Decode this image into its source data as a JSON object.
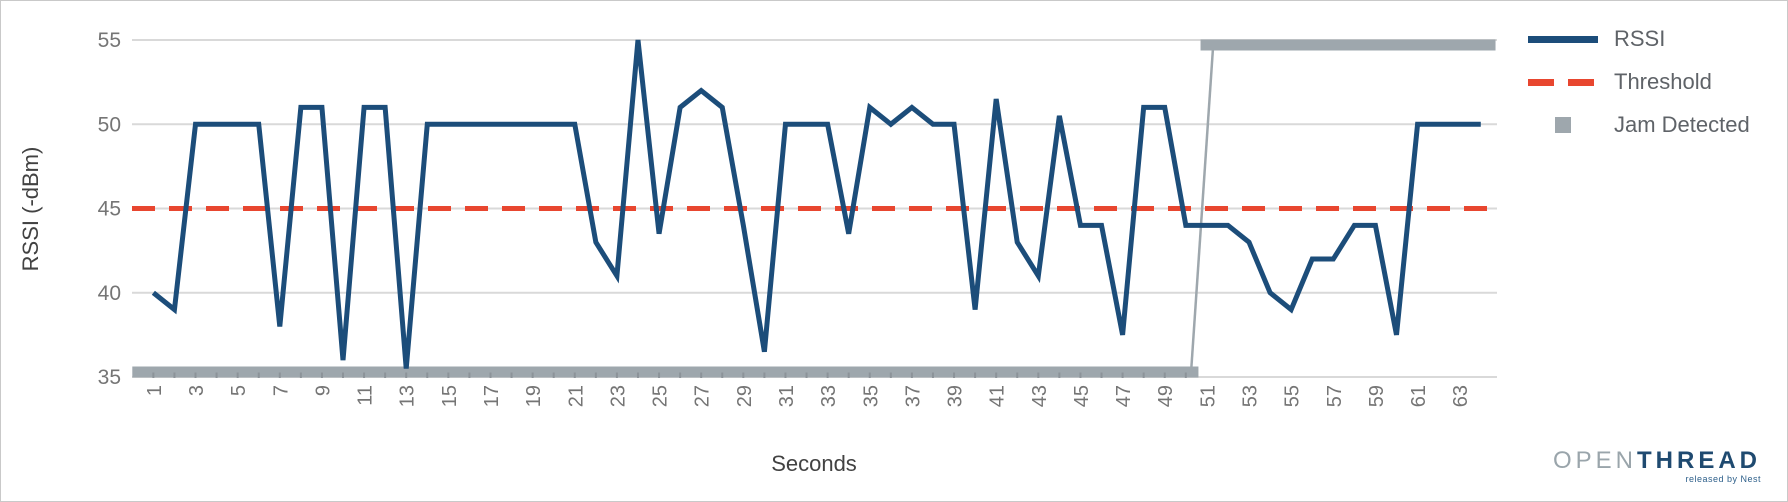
{
  "chart_data": {
    "type": "line",
    "title": "",
    "xlabel": "Seconds",
    "ylabel": "RSSI (-dBm)",
    "ylim": [
      35,
      55
    ],
    "xlim_seconds": [
      0,
      65
    ],
    "grid": true,
    "legend_position": "right",
    "y_ticks": [
      55,
      50,
      45,
      40,
      35
    ],
    "x_ticks": [
      1,
      3,
      5,
      7,
      9,
      11,
      13,
      15,
      17,
      19,
      21,
      23,
      25,
      27,
      29,
      31,
      33,
      35,
      37,
      39,
      41,
      43,
      45,
      47,
      49,
      51,
      53,
      55,
      57,
      59,
      61,
      63
    ],
    "series": [
      {
        "name": "RSSI",
        "type": "line",
        "color": "#1C4D7A",
        "start_second": 1,
        "step_seconds": 1,
        "values": [
          40,
          39,
          50,
          50,
          50,
          50,
          38,
          51,
          51,
          36,
          51,
          51,
          35.5,
          50,
          50,
          50,
          50,
          50,
          50,
          50,
          50,
          43,
          41,
          55,
          43.5,
          51,
          52,
          51,
          44,
          36.5,
          50,
          50,
          50,
          43.5,
          51,
          50,
          51,
          50,
          50,
          39,
          51.5,
          43,
          41,
          50.5,
          44,
          44,
          37.5,
          51,
          51,
          44,
          44,
          44,
          43,
          40,
          39,
          42,
          42,
          44,
          44,
          37.5,
          50,
          50,
          50,
          50
        ]
      },
      {
        "name": "Threshold",
        "type": "threshold-line",
        "color": "#E8462F",
        "value": 45
      },
      {
        "name": "Jam Detected",
        "type": "jam-band",
        "color": "#9EA7AD",
        "detected_from_second": 51,
        "low_value": 35.3,
        "high_value": 54.7,
        "low_span_seconds": [
          0,
          50.6
        ],
        "high_span_seconds": [
          50.7,
          64.7
        ],
        "transition_seconds": [
          50.25,
          51.3
        ]
      }
    ],
    "grid_color": "#D9D9D9",
    "tick_label_color": "#757575",
    "axis_title_color": "#424242",
    "legend_text_color": "#5F6368"
  },
  "logo": {
    "open": "OPEN",
    "thread": "THREAD",
    "tagline": "released by Nest",
    "open_color": "#9AA5AB",
    "thread_color": "#1F4A70",
    "tagline_color": "#2D5F8A"
  }
}
